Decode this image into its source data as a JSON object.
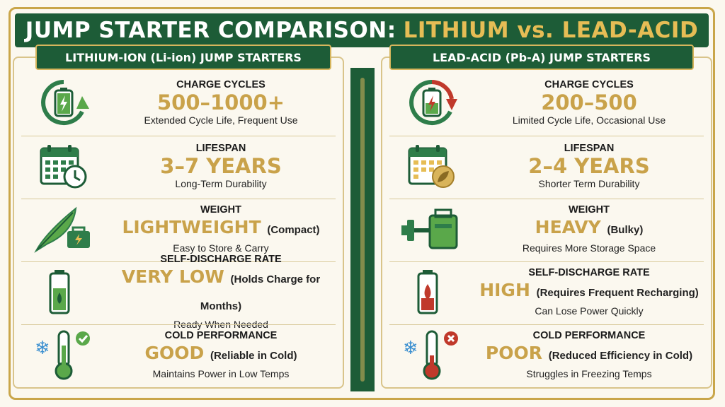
{
  "title": {
    "part1": "JUMP STARTER COMPARISON:",
    "part2": "LITHIUM vs. LEAD-ACID"
  },
  "left": {
    "header": "LITHIUM-ION (Li-ion) JUMP STARTERS",
    "rows": [
      {
        "label": "CHARGE CYCLES",
        "value": "500–1000+",
        "note": "",
        "sub": "Extended Cycle Life, Frequent Use",
        "icon": "battery-cycle-up-icon"
      },
      {
        "label": "LIFESPAN",
        "value": "3–7 YEARS",
        "note": "",
        "sub": "Long-Term Durability",
        "icon": "calendar-clock-icon"
      },
      {
        "label": "WEIGHT",
        "value": "LIGHTWEIGHT",
        "note": "(Compact)",
        "sub": "Easy to Store & Carry",
        "icon": "feather-battery-icon"
      },
      {
        "label": "SELF-DISCHARGE RATE",
        "value": "VERY LOW",
        "note": "(Holds Charge for Months)",
        "sub": "Ready When Needed",
        "icon": "battery-drop-green-icon"
      },
      {
        "label": "COLD PERFORMANCE",
        "value": "GOOD",
        "note": "(Reliable in Cold)",
        "sub": "Maintains Power in Low Temps",
        "icon": "thermometer-check-icon"
      }
    ]
  },
  "right": {
    "header": "LEAD-ACID (Pb-A) JUMP STARTERS",
    "rows": [
      {
        "label": "CHARGE CYCLES",
        "value": "200–500",
        "note": "",
        "sub": "Limited Cycle Life, Occasional Use",
        "icon": "battery-cycle-down-icon"
      },
      {
        "label": "LIFESPAN",
        "value": "2–4 YEARS",
        "note": "",
        "sub": "Shorter Term Durability",
        "icon": "calendar-leaf-icon"
      },
      {
        "label": "WEIGHT",
        "value": "HEAVY",
        "note": "(Bulky)",
        "sub": "Requires More Storage Space",
        "icon": "dumbbell-battery-icon"
      },
      {
        "label": "SELF-DISCHARGE RATE",
        "value": "HIGH",
        "note": "(Requires Frequent Recharging)",
        "sub": "Can Lose Power Quickly",
        "icon": "battery-drop-red-icon"
      },
      {
        "label": "COLD PERFORMANCE",
        "value": "POOR",
        "note": "(Reduced Efficiency in Cold)",
        "sub": "Struggles in Freezing Temps",
        "icon": "thermometer-x-icon"
      }
    ]
  },
  "colors": {
    "green": "#1d5c37",
    "gold": "#c9a24a",
    "red": "#c0392b",
    "cream": "#fbf8ef"
  }
}
